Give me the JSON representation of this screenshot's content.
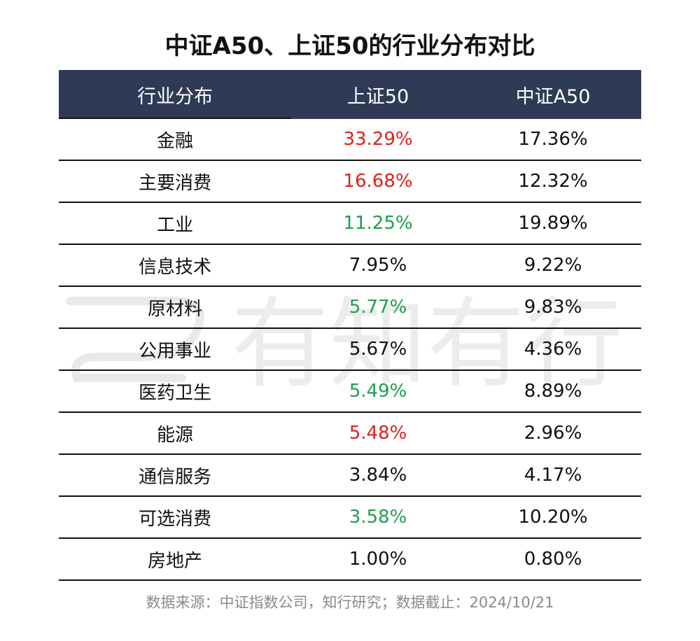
{
  "title": "中证A50、上证50的行业分布对比",
  "watermark": "有知有行",
  "colors": {
    "header_bg": "#2f3a56",
    "red": "#e0201c",
    "green": "#1f9e4f",
    "neutral": "#111111"
  },
  "headers": [
    "行业分布",
    "上证50",
    "中证A50"
  ],
  "rows": [
    {
      "industry": "金融",
      "sz50": "33.29%",
      "a50": "17.36%",
      "sz50_color": "red"
    },
    {
      "industry": "主要消费",
      "sz50": "16.68%",
      "a50": "12.32%",
      "sz50_color": "red"
    },
    {
      "industry": "工业",
      "sz50": "11.25%",
      "a50": "19.89%",
      "sz50_color": "green"
    },
    {
      "industry": "信息技术",
      "sz50": "7.95%",
      "a50": "9.22%",
      "sz50_color": "neutral"
    },
    {
      "industry": "原材料",
      "sz50": "5.77%",
      "a50": "9.83%",
      "sz50_color": "green"
    },
    {
      "industry": "公用事业",
      "sz50": "5.67%",
      "a50": "4.36%",
      "sz50_color": "neutral"
    },
    {
      "industry": "医药卫生",
      "sz50": "5.49%",
      "a50": "8.89%",
      "sz50_color": "green"
    },
    {
      "industry": "能源",
      "sz50": "5.48%",
      "a50": "2.96%",
      "sz50_color": "red"
    },
    {
      "industry": "通信服务",
      "sz50": "3.84%",
      "a50": "4.17%",
      "sz50_color": "neutral"
    },
    {
      "industry": "可选消费",
      "sz50": "3.58%",
      "a50": "10.20%",
      "sz50_color": "green"
    },
    {
      "industry": "房地产",
      "sz50": "1.00%",
      "a50": "0.80%",
      "sz50_color": "neutral"
    }
  ],
  "source": "数据来源：中证指数公司，知行研究；数据截止：2024/10/21",
  "chart_data": {
    "type": "table",
    "title": "中证A50、上证50的行业分布对比",
    "columns": [
      "行业分布",
      "上证50",
      "中证A50"
    ],
    "rows": [
      [
        "金融",
        "33.29%",
        "17.36%"
      ],
      [
        "主要消费",
        "16.68%",
        "12.32%"
      ],
      [
        "工业",
        "11.25%",
        "19.89%"
      ],
      [
        "信息技术",
        "7.95%",
        "9.22%"
      ],
      [
        "原材料",
        "5.77%",
        "9.83%"
      ],
      [
        "公用事业",
        "5.67%",
        "4.36%"
      ],
      [
        "医药卫生",
        "5.49%",
        "8.89%"
      ],
      [
        "能源",
        "5.48%",
        "2.96%"
      ],
      [
        "通信服务",
        "3.84%",
        "4.17%"
      ],
      [
        "可选消费",
        "3.58%",
        "10.20%"
      ],
      [
        "房地产",
        "1.00%",
        "0.80%"
      ]
    ]
  }
}
